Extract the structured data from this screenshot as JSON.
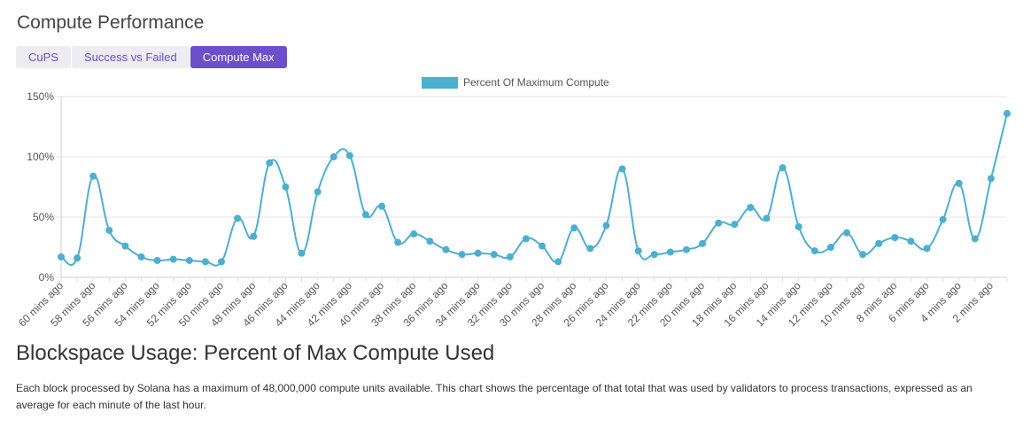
{
  "page": {
    "title": "Compute Performance"
  },
  "tabs": [
    {
      "label": "CuPS",
      "active": false
    },
    {
      "label": "Success vs Failed",
      "active": false
    },
    {
      "label": "Compute Max",
      "active": true
    }
  ],
  "colors": {
    "series": "#4bafd0",
    "active_tab": "#6b4fcb",
    "tab_text": "#6a4fc9",
    "grid": "#e6e6e6"
  },
  "chart_data": {
    "type": "line",
    "legend_position": "top-center",
    "grid": true,
    "ylim": [
      0,
      150
    ],
    "yticks": [
      0,
      50,
      100,
      150
    ],
    "ytick_labels": [
      "0%",
      "50%",
      "100%",
      "150%"
    ],
    "x_labels_shown": [
      "60 mins ago",
      "58 mins ago",
      "56 mins ago",
      "54 mins ago",
      "52 mins ago",
      "50 mins ago",
      "48 mins ago",
      "46 mins ago",
      "44 mins ago",
      "42 mins ago",
      "40 mins ago",
      "38 mins ago",
      "36 mins ago",
      "34 mins ago",
      "32 mins ago",
      "30 mins ago",
      "28 mins ago",
      "26 mins ago",
      "24 mins ago",
      "22 mins ago",
      "20 mins ago",
      "18 mins ago",
      "16 mins ago",
      "14 mins ago",
      "12 mins ago",
      "10 mins ago",
      "8 mins ago",
      "6 mins ago",
      "4 mins ago",
      "2 mins ago"
    ],
    "x": [
      "60 mins ago",
      "59 mins ago",
      "58 mins ago",
      "57 mins ago",
      "56 mins ago",
      "55 mins ago",
      "54 mins ago",
      "53 mins ago",
      "52 mins ago",
      "51 mins ago",
      "50 mins ago",
      "49 mins ago",
      "48 mins ago",
      "47 mins ago",
      "46 mins ago",
      "45 mins ago",
      "44 mins ago",
      "43 mins ago",
      "42 mins ago",
      "41 mins ago",
      "40 mins ago",
      "39 mins ago",
      "38 mins ago",
      "37 mins ago",
      "36 mins ago",
      "35 mins ago",
      "34 mins ago",
      "33 mins ago",
      "32 mins ago",
      "31 mins ago",
      "30 mins ago",
      "29 mins ago",
      "28 mins ago",
      "27 mins ago",
      "26 mins ago",
      "25 mins ago",
      "24 mins ago",
      "23 mins ago",
      "22 mins ago",
      "21 mins ago",
      "20 mins ago",
      "19 mins ago",
      "18 mins ago",
      "17 mins ago",
      "16 mins ago",
      "15 mins ago",
      "14 mins ago",
      "13 mins ago",
      "12 mins ago",
      "11 mins ago",
      "10 mins ago",
      "9 mins ago",
      "8 mins ago",
      "7 mins ago",
      "6 mins ago",
      "5 mins ago",
      "4 mins ago",
      "3 mins ago",
      "2 mins ago",
      "1 mins ago"
    ],
    "series": [
      {
        "name": "Percent Of Maximum Compute",
        "values": [
          17,
          16,
          84,
          39,
          26,
          17,
          14,
          15,
          14,
          13,
          13,
          49,
          34,
          95,
          75,
          20,
          71,
          100,
          101,
          52,
          59,
          29,
          36,
          30,
          23,
          19,
          20,
          19,
          17,
          32,
          26,
          13,
          41,
          24,
          43,
          90,
          22,
          19,
          21,
          23,
          28,
          45,
          44,
          58,
          49,
          91,
          42,
          22,
          25,
          37,
          19,
          28,
          33,
          30,
          24,
          48,
          78,
          32,
          82,
          136
        ]
      }
    ]
  },
  "section": {
    "title": "Blockspace Usage: Percent of Max Compute Used",
    "description": "Each block processed by Solana has a maximum of 48,000,000 compute units available. This chart shows the percentage of that total that was used by validators to process transactions, expressed as an average for each minute of the last hour."
  }
}
